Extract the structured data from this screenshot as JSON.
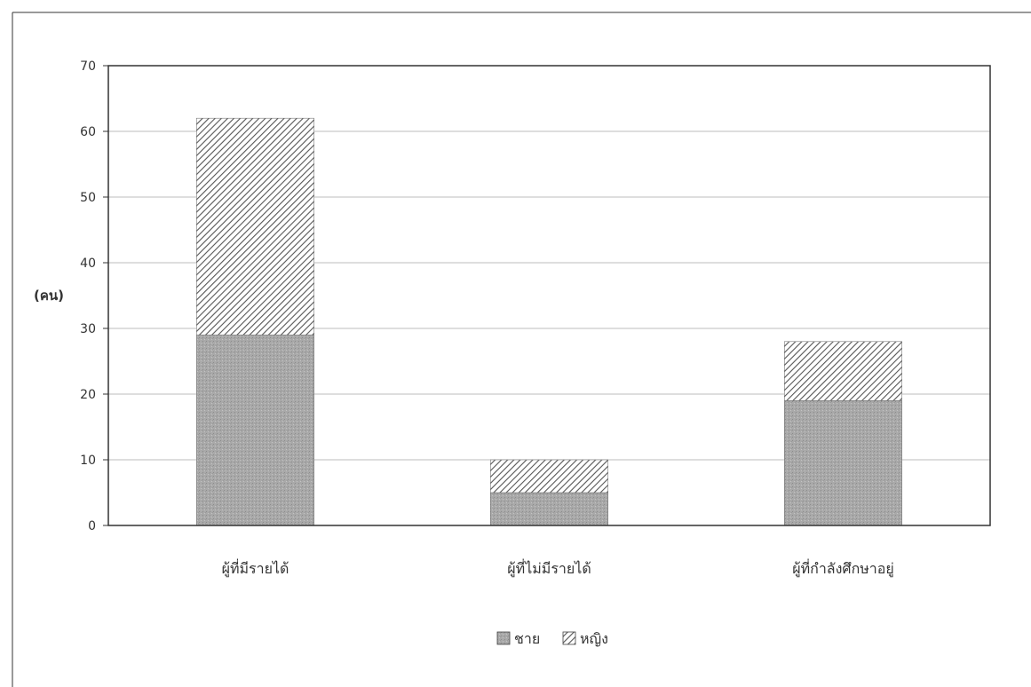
{
  "chart_data": {
    "type": "bar",
    "stacked": true,
    "categories": [
      "ผู้ที่มีรายได้",
      "ผู้ที่ไม่มีรายได้",
      "ผู้ที่กำลังศึกษาอยู่"
    ],
    "series": [
      {
        "name": "ชาย",
        "values": [
          29,
          5,
          19
        ],
        "pattern": "dotted-gray"
      },
      {
        "name": "หญิง",
        "values": [
          33,
          5,
          9
        ],
        "pattern": "diagonal-hatch"
      }
    ],
    "title": "",
    "xlabel": "",
    "ylabel": "(คน)",
    "ylim": [
      0,
      70
    ],
    "yticks": [
      0,
      10,
      20,
      30,
      40,
      50,
      60,
      70
    ],
    "grid": true,
    "legend": "bottom-center",
    "colors": {
      "male_fill": "#a9a9a9",
      "hatch": "#555555",
      "axis": "#333333",
      "grid": "#bdbdbd"
    }
  }
}
